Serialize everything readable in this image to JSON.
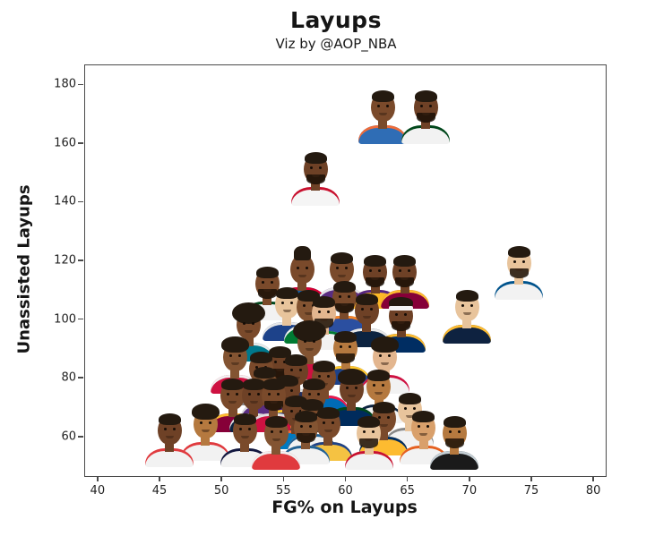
{
  "header": {
    "title": "Layups",
    "subtitle": "Viz by @AOP_NBA"
  },
  "chart_data": {
    "type": "scatter",
    "marker_style": "NBA player headshot photos used as scatter markers",
    "title": "Layups",
    "subtitle": "Viz by @AOP_NBA",
    "xlabel": "FG% on Layups",
    "ylabel": "Unassisted Layups",
    "xlim": [
      39,
      81
    ],
    "ylim": [
      46.5,
      186.5
    ],
    "x_ticks": [
      40,
      45,
      50,
      55,
      60,
      65,
      70,
      75,
      80
    ],
    "y_ticks": [
      60,
      80,
      100,
      120,
      140,
      160,
      180
    ],
    "grid": false,
    "legend": "none",
    "frame_color": "#4a4a4a",
    "points": [
      {
        "id": "shai-gilgeous-alexander",
        "fg": 63.0,
        "ul": 169,
        "jersey": "#2f6db5",
        "trim": "#ef6c3a",
        "skin": "#7a4a2b",
        "hair": "short",
        "beard": false
      },
      {
        "id": "giannis-antetokounmpo",
        "fg": 66.5,
        "ul": 169,
        "jersey": "#f2f2f2",
        "trim": "#00471b",
        "skin": "#6e4126",
        "hair": "short",
        "beard": true
      },
      {
        "id": "zion-williamson",
        "fg": 57.6,
        "ul": 148,
        "jersey": "#f5f5f5",
        "trim": "#c8102e",
        "skin": "#6e4126",
        "hair": "short",
        "beard": true
      },
      {
        "id": "damian-lillard",
        "fg": 53.7,
        "ul": 109,
        "jersey": "#f2f2f2",
        "trim": "#00471b",
        "skin": "#7a4a2b",
        "hair": "short",
        "beard": true
      },
      {
        "id": "tyrese-maxey",
        "fg": 56.5,
        "ul": 114,
        "jersey": "#1460aa",
        "trim": "#d50032",
        "skin": "#7a4a2b",
        "hair": "tall",
        "beard": false
      },
      {
        "id": "deaaron-fox",
        "fg": 59.7,
        "ul": 114,
        "jersey": "#5a2d81",
        "trim": "#e8e8e8",
        "skin": "#7a4a2b",
        "hair": "short",
        "beard": false
      },
      {
        "id": "lebron-james",
        "fg": 62.4,
        "ul": 113,
        "jersey": "#fdb927",
        "trim": "#552583",
        "skin": "#6e4126",
        "hair": "short",
        "beard": true
      },
      {
        "id": "donovan-mitchell",
        "fg": 64.8,
        "ul": 113,
        "jersey": "#860038",
        "trim": "#fdbb30",
        "skin": "#6e4126",
        "hair": "short",
        "beard": true
      },
      {
        "id": "player-navy-1",
        "fg": 55.3,
        "ul": 102,
        "jersey": "#1d428a",
        "trim": "#e8e8e8",
        "skin": "#e8c49c",
        "hair": "short",
        "beard": false
      },
      {
        "id": "jayson-tatum",
        "fg": 57.0,
        "ul": 101,
        "jersey": "#007a33",
        "trim": "#f0f0f0",
        "skin": "#835432",
        "hair": "short",
        "beard": false
      },
      {
        "id": "derrick-white",
        "fg": 58.3,
        "ul": 99,
        "jersey": "#f2f2f2",
        "trim": "#007a33",
        "skin": "#e3b68f",
        "hair": "short",
        "beard": true
      },
      {
        "id": "julius-randle",
        "fg": 59.9,
        "ul": 104,
        "jersey": "#2b4fa0",
        "trim": "#f58426",
        "skin": "#7a4a2b",
        "hair": "short",
        "beard": true
      },
      {
        "id": "anthony-edwards",
        "fg": 61.7,
        "ul": 100,
        "jersey": "#0c2340",
        "trim": "#e8e8e8",
        "skin": "#6e4126",
        "hair": "short",
        "beard": false
      },
      {
        "id": "pascal-siakam",
        "fg": 64.5,
        "ul": 98,
        "jersey": "#002d62",
        "trim": "#fdbb30",
        "skin": "#6e4126",
        "hair": "band",
        "beard": true
      },
      {
        "id": "nikola-jokic",
        "fg": 69.8,
        "ul": 101,
        "jersey": "#0e2240",
        "trim": "#fdbb30",
        "skin": "#e8c49c",
        "hair": "short",
        "beard": false
      },
      {
        "id": "luka-doncic",
        "fg": 74.0,
        "ul": 116,
        "jersey": "#f2f2f2",
        "trim": "#00538c",
        "skin": "#e8c49c",
        "hair": "short",
        "beard": true
      },
      {
        "id": "player-afro-1",
        "fg": 52.2,
        "ul": 95,
        "jersey": "#00788c",
        "trim": "#e8e8e8",
        "skin": "#7a4a2b",
        "hair": "afro",
        "beard": false
      },
      {
        "id": "coby-white",
        "fg": 57.1,
        "ul": 89,
        "jersey": "#ce1141",
        "trim": "#f0f0f0",
        "skin": "#835432",
        "hair": "afro",
        "beard": false
      },
      {
        "id": "jalen-green",
        "fg": 51.1,
        "ul": 84,
        "jersey": "#ce1141",
        "trim": "#f0f0f0",
        "skin": "#835432",
        "hair": "curly",
        "beard": false
      },
      {
        "id": "jaylen-brown",
        "fg": 54.7,
        "ul": 82,
        "jersey": "#007a33",
        "trim": "#f0f0f0",
        "skin": "#6e4126",
        "hair": "short",
        "beard": true
      },
      {
        "id": "stephen-curry",
        "fg": 60.0,
        "ul": 87,
        "jersey": "#1d428a",
        "trim": "#ffc72c",
        "skin": "#c austin"
      },
      {
        "id": "alperen-sengun",
        "fg": 63.2,
        "ul": 84,
        "jersey": "#f2f2f2",
        "trim": "#ce1141",
        "skin": "#e3b68f",
        "hair": "curly",
        "beard": false
      },
      {
        "id": "player-2",
        "fg": 53.2,
        "ul": 80,
        "jersey": "#888888",
        "trim": "#e0e0e0",
        "skin": "#7a4a2b",
        "hair": "short",
        "beard": false
      },
      {
        "id": "player-3",
        "fg": 56.0,
        "ul": 79,
        "jersey": "#26315f",
        "trim": "#e0e0e0",
        "skin": "#6e4126",
        "hair": "short",
        "beard": false
      },
      {
        "id": "player-4",
        "fg": 58.3,
        "ul": 77,
        "jersey": "#006bb6",
        "trim": "#ed174c",
        "skin": "#7a4a2b",
        "hair": "short",
        "beard": false
      },
      {
        "id": "collin-sexton",
        "fg": 60.5,
        "ul": 73,
        "jersey": "#002b5c",
        "trim": "#00471b",
        "skin": "#6e4126",
        "hair": "curly",
        "beard": false
      },
      {
        "id": "trey-murphy",
        "fg": 62.7,
        "ul": 74,
        "jersey": "#f2f2f2",
        "trim": "#0c2340",
        "skin": "#b5793f",
        "hair": "short",
        "beard": false
      },
      {
        "id": "karl-anthony-towns",
        "fg": 56.8,
        "ul": 60,
        "jersey": "#f2f2f2",
        "trim": "#236192",
        "skin": "#835432",
        "hair": "short",
        "beard": true
      },
      {
        "id": "malcolm-brogdon",
        "fg": 54.4,
        "ul": 58,
        "jersey": "#e03a3e",
        "trim": "#f0f0f0",
        "skin": "#835432",
        "hair": "short",
        "beard": false
      },
      {
        "id": "player-5",
        "fg": 51.9,
        "ul": 59,
        "jersey": "#f2f2f2",
        "trim": "#12173f",
        "skin": "#7a4a2b",
        "hair": "short",
        "beard": false
      },
      {
        "id": "clint-capela",
        "fg": 45.8,
        "ul": 59,
        "jersey": "#f2f2f2",
        "trim": "#e03a3e",
        "skin": "#6e4126",
        "hair": "short",
        "beard": false
      },
      {
        "id": "trae-young",
        "fg": 48.7,
        "ul": 61,
        "jersey": "#f2f2f2",
        "trim": "#e03a3e",
        "skin": "#b5793f",
        "hair": "curly",
        "beard": false
      },
      {
        "id": "player-city-stripes",
        "fg": 58.6,
        "ul": 61,
        "jersey": "#f5c242",
        "trim": "#1d428a",
        "skin": "#7a4a2b",
        "hair": "short",
        "beard": false
      },
      {
        "id": "jonas-valanciunas",
        "fg": 61.9,
        "ul": 58,
        "jersey": "#f2f2f2",
        "trim": "#c8102e",
        "skin": "#e8c49c",
        "hair": "short",
        "beard": true
      },
      {
        "id": "devin-booker",
        "fg": 66.3,
        "ul": 60,
        "jersey": "#f2f2f2",
        "trim": "#e56020",
        "skin": "#d9a06b",
        "hair": "short",
        "beard": false
      },
      {
        "id": "tre-jones",
        "fg": 68.8,
        "ul": 58,
        "jersey": "#1a1a1a",
        "trim": "#c4ced4",
        "skin": "#b5793f",
        "hair": "short",
        "beard": true
      },
      {
        "id": "player-pacers-gold",
        "fg": 63.1,
        "ul": 63,
        "jersey": "#fdbb30",
        "trim": "#002d62",
        "skin": "#7a4a2b",
        "hair": "short",
        "beard": false
      },
      {
        "id": "player-light-1",
        "fg": 65.2,
        "ul": 66,
        "jersey": "#f2f2f2",
        "trim": "#888888",
        "skin": "#e8c49c",
        "hair": "short",
        "beard": false
      },
      {
        "id": "player-6",
        "fg": 50.9,
        "ul": 71,
        "jersey": "#860038",
        "trim": "#fdbb30",
        "skin": "#7a4a2b",
        "hair": "short",
        "beard": false
      },
      {
        "id": "player-7",
        "fg": 52.6,
        "ul": 71,
        "jersey": "#0c2340",
        "trim": "#e0e0e0",
        "skin": "#6e4126",
        "hair": "short",
        "beard": false
      },
      {
        "id": "player-8",
        "fg": 54.2,
        "ul": 71,
        "jersey": "#ce1141",
        "trim": "#e0e0e0",
        "skin": "#7a4a2b",
        "hair": "short",
        "beard": true
      },
      {
        "id": "player-9",
        "fg": 53.5,
        "ul": 75,
        "jersey": "#5a2d81",
        "trim": "#e0e0e0",
        "skin": "#835432",
        "hair": "short",
        "beard": false
      },
      {
        "id": "player-10",
        "fg": 55.3,
        "ul": 72,
        "jersey": "#1d428a",
        "trim": "#ffc72c",
        "skin": "#6e4126",
        "hair": "short",
        "beard": false
      },
      {
        "id": "player-11",
        "fg": 57.5,
        "ul": 71,
        "jersey": "#002b5c",
        "trim": "#f9a01b",
        "skin": "#7a4a2b",
        "hair": "short",
        "beard": false
      },
      {
        "id": "player-12",
        "fg": 56.0,
        "ul": 65,
        "jersey": "#007ac1",
        "trim": "#ef6c3a",
        "skin": "#6e4126",
        "hair": "short",
        "beard": false
      },
      {
        "id": "player-13",
        "fg": 57.3,
        "ul": 64,
        "jersey": "#f2f2f2",
        "trim": "#236192",
        "skin": "#7a4a2b",
        "hair": "short",
        "beard": true
      }
    ]
  }
}
